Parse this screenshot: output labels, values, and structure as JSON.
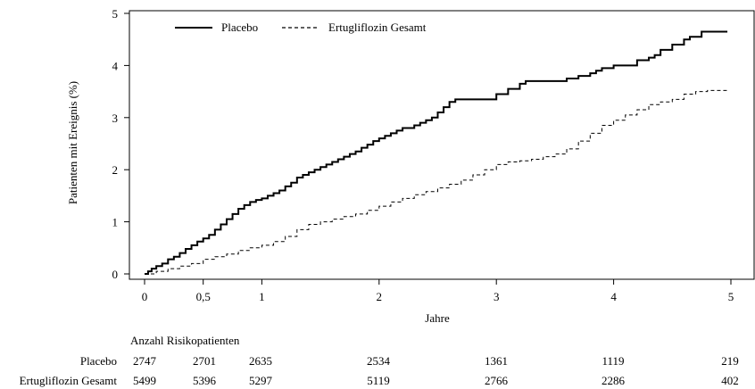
{
  "chart_data": {
    "type": "line",
    "title": "",
    "xlabel": "Jahre",
    "ylabel": "Patienten mit Ereignis (%)",
    "xlim": [
      -0.1,
      5.05
    ],
    "ylim": [
      0,
      5
    ],
    "x_ticks": [
      0,
      0.5,
      1,
      2,
      3,
      4,
      5
    ],
    "x_tick_labels": [
      "0",
      "0,5",
      "1",
      "2",
      "3",
      "4",
      "5"
    ],
    "y_ticks": [
      0,
      1,
      2,
      3,
      4,
      5
    ],
    "y_tick_labels": [
      "0",
      "1",
      "2",
      "3",
      "4",
      "5"
    ],
    "grid": false,
    "legend_position": "top-left",
    "series": [
      {
        "name": "Placebo",
        "style": "solid",
        "color": "#000000",
        "x": [
          0,
          0.03,
          0.06,
          0.1,
          0.15,
          0.2,
          0.25,
          0.3,
          0.35,
          0.4,
          0.45,
          0.5,
          0.55,
          0.6,
          0.65,
          0.7,
          0.75,
          0.8,
          0.85,
          0.9,
          0.95,
          1.0,
          1.05,
          1.1,
          1.15,
          1.2,
          1.25,
          1.3,
          1.35,
          1.4,
          1.45,
          1.5,
          1.55,
          1.6,
          1.65,
          1.7,
          1.75,
          1.8,
          1.85,
          1.9,
          1.95,
          2.0,
          2.05,
          2.1,
          2.15,
          2.2,
          2.25,
          2.3,
          2.35,
          2.4,
          2.45,
          2.5,
          2.55,
          2.6,
          2.65,
          2.7,
          2.75,
          3.0,
          3.1,
          3.2,
          3.25,
          3.6,
          3.7,
          3.8,
          3.85,
          3.9,
          4.0,
          4.2,
          4.3,
          4.35,
          4.4,
          4.5,
          4.6,
          4.65,
          4.75,
          4.97
        ],
        "values": [
          0,
          0.05,
          0.1,
          0.15,
          0.2,
          0.28,
          0.33,
          0.4,
          0.48,
          0.55,
          0.62,
          0.68,
          0.75,
          0.85,
          0.95,
          1.05,
          1.15,
          1.25,
          1.32,
          1.38,
          1.42,
          1.45,
          1.5,
          1.55,
          1.6,
          1.68,
          1.75,
          1.85,
          1.9,
          1.95,
          2.0,
          2.05,
          2.1,
          2.15,
          2.2,
          2.25,
          2.3,
          2.35,
          2.42,
          2.48,
          2.55,
          2.6,
          2.65,
          2.7,
          2.75,
          2.8,
          2.8,
          2.85,
          2.9,
          2.95,
          3.0,
          3.1,
          3.2,
          3.3,
          3.35,
          3.35,
          3.35,
          3.45,
          3.55,
          3.65,
          3.7,
          3.75,
          3.8,
          3.85,
          3.9,
          3.95,
          4.0,
          4.1,
          4.15,
          4.2,
          4.3,
          4.4,
          4.5,
          4.55,
          4.65,
          4.65
        ]
      },
      {
        "name": "Ertugliflozin Gesamt",
        "style": "dashed",
        "color": "#000000",
        "x": [
          0,
          0.1,
          0.2,
          0.3,
          0.4,
          0.5,
          0.6,
          0.7,
          0.8,
          0.9,
          1.0,
          1.1,
          1.2,
          1.3,
          1.4,
          1.5,
          1.6,
          1.7,
          1.8,
          1.9,
          2.0,
          2.1,
          2.2,
          2.3,
          2.4,
          2.5,
          2.6,
          2.7,
          2.8,
          2.9,
          3.0,
          3.1,
          3.2,
          3.3,
          3.4,
          3.5,
          3.6,
          3.7,
          3.8,
          3.9,
          4.0,
          4.1,
          4.2,
          4.3,
          4.4,
          4.5,
          4.6,
          4.7,
          4.8,
          4.97
        ],
        "values": [
          0,
          0.05,
          0.1,
          0.15,
          0.2,
          0.28,
          0.33,
          0.38,
          0.45,
          0.5,
          0.55,
          0.62,
          0.72,
          0.85,
          0.95,
          1.0,
          1.05,
          1.1,
          1.15,
          1.22,
          1.3,
          1.38,
          1.45,
          1.52,
          1.58,
          1.65,
          1.72,
          1.8,
          1.9,
          2.0,
          2.1,
          2.15,
          2.17,
          2.2,
          2.25,
          2.3,
          2.4,
          2.55,
          2.7,
          2.85,
          2.95,
          3.05,
          3.15,
          3.25,
          3.3,
          3.35,
          3.45,
          3.5,
          3.52,
          3.52
        ]
      }
    ]
  },
  "risk_table": {
    "title": "Anzahl Risikopatienten",
    "timepoints": [
      0,
      0.5,
      1,
      2,
      3,
      4,
      5
    ],
    "rows": [
      {
        "label": "Placebo",
        "values": [
          "2747",
          "2701",
          "2635",
          "2534",
          "1361",
          "1119",
          "219"
        ]
      },
      {
        "label": "Ertugliflozin Gesamt",
        "values": [
          "5499",
          "5396",
          "5297",
          "5119",
          "2766",
          "2286",
          "402"
        ]
      }
    ]
  }
}
